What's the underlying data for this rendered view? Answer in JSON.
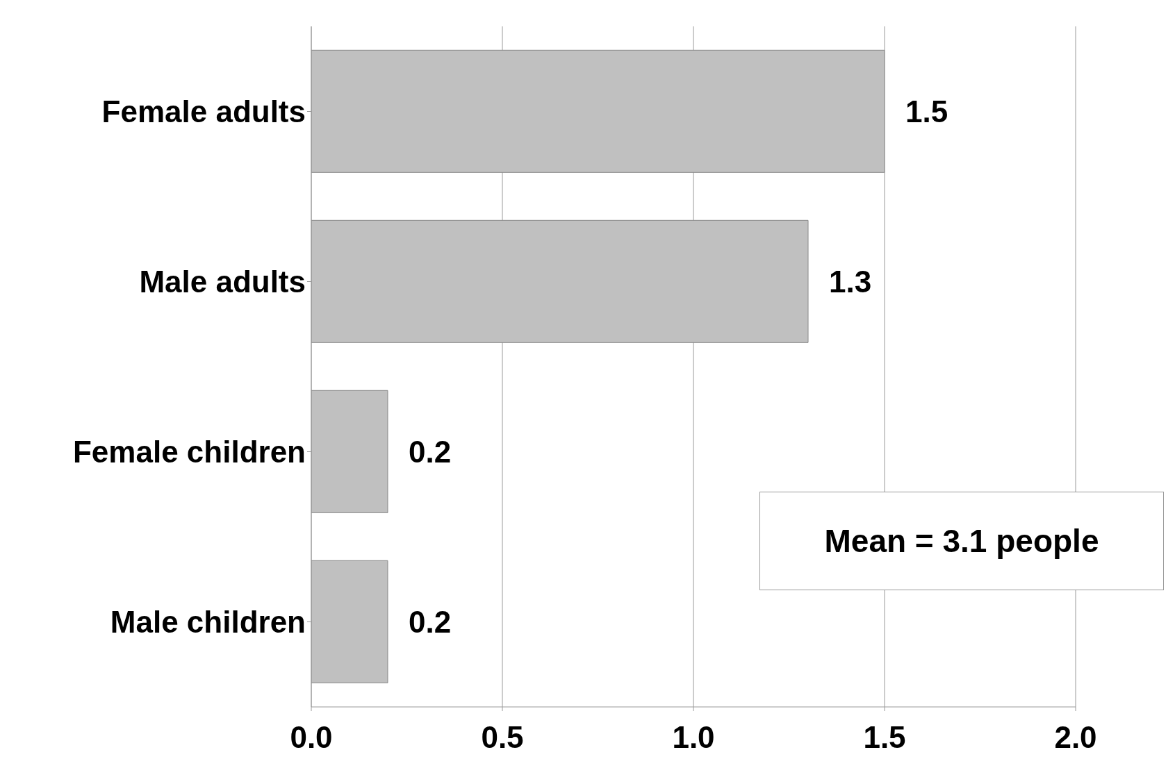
{
  "chart_data": {
    "type": "bar",
    "orientation": "horizontal",
    "categories": [
      "Female adults",
      "Male adults",
      "Female children",
      "Male children"
    ],
    "values": [
      1.5,
      1.3,
      0.2,
      0.2
    ],
    "color": "#c0c0c0",
    "xlim": [
      0,
      2
    ],
    "xticks": [
      {
        "value": 0,
        "label": "0.0"
      },
      {
        "value": 0.5,
        "label": "0.5"
      },
      {
        "value": 1,
        "label": "1.0"
      },
      {
        "value": 1.5,
        "label": "1.5"
      },
      {
        "value": 2,
        "label": "2.0"
      }
    ],
    "grid": "x",
    "data_labels": true,
    "annotations": [
      "Mean = 3.1 people"
    ]
  }
}
